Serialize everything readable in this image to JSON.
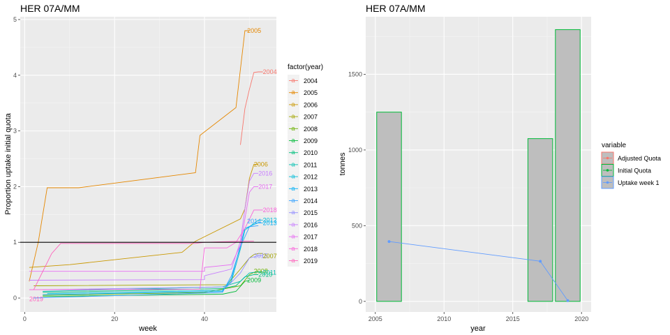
{
  "chart_data": [
    {
      "type": "line",
      "title": "HER 07A/MM",
      "xlabel": "week",
      "ylabel": "Proportion uptake initial quota",
      "xlim": [
        -1,
        56
      ],
      "ylim": [
        -0.25,
        5.05
      ],
      "xticks": [
        0,
        20,
        40
      ],
      "yticks": [
        0,
        1,
        2,
        3,
        4,
        5
      ],
      "hline": 1,
      "grid": true,
      "legend": {
        "title": "factor(year)",
        "position": "right"
      },
      "series": [
        {
          "name": "2004",
          "color": "#F8766D",
          "label": "2004",
          "points": [
            [
              48,
              2.75
            ],
            [
              49,
              3.4
            ],
            [
              50,
              3.75
            ],
            [
              51,
              4.05
            ],
            [
              52,
              4.06
            ],
            [
              53,
              4.06
            ]
          ]
        },
        {
          "name": "2005",
          "color": "#E58700",
          "label": "2005",
          "points": [
            [
              1,
              0.3
            ],
            [
              3,
              1.0
            ],
            [
              5,
              1.98
            ],
            [
              12,
              1.98
            ],
            [
              38,
              2.25
            ],
            [
              39,
              2.92
            ],
            [
              47,
              3.42
            ],
            [
              49,
              4.8
            ],
            [
              50,
              4.8
            ]
          ]
        },
        {
          "name": "2006",
          "color": "#C99800",
          "label": "2006",
          "points": [
            [
              1,
              0.55
            ],
            [
              10,
              0.6
            ],
            [
              35,
              0.82
            ],
            [
              38,
              1.02
            ],
            [
              48,
              1.42
            ],
            [
              49,
              1.6
            ],
            [
              50,
              2.15
            ],
            [
              51,
              2.4
            ],
            [
              52,
              2.4
            ]
          ]
        },
        {
          "name": "2007",
          "color": "#A3A500",
          "label": "2007",
          "points": [
            [
              2,
              0.22
            ],
            [
              45,
              0.24
            ],
            [
              48,
              0.52
            ],
            [
              50,
              0.72
            ],
            [
              51,
              0.78
            ],
            [
              52,
              0.8
            ],
            [
              53,
              0.8
            ]
          ]
        },
        {
          "name": "2008",
          "color": "#6BB100",
          "label": "2008",
          "points": [
            [
              4,
              0.05
            ],
            [
              40,
              0.1
            ],
            [
              48,
              0.22
            ],
            [
              50,
              0.42
            ],
            [
              51,
              0.46
            ],
            [
              52,
              0.48
            ]
          ]
        },
        {
          "name": "2009",
          "color": "#00BA38",
          "label": "2009",
          "points": [
            [
              4,
              0.03
            ],
            [
              44,
              0.07
            ],
            [
              47,
              0.12
            ],
            [
              49,
              0.3
            ],
            [
              50,
              0.32
            ]
          ]
        },
        {
          "name": "2010",
          "color": "#00BF7D",
          "label": "2010",
          "points": [
            [
              4,
              0.1
            ],
            [
              44,
              0.17
            ],
            [
              47,
              0.22
            ],
            [
              49,
              0.38
            ],
            [
              51,
              0.42
            ],
            [
              52,
              0.42
            ]
          ]
        },
        {
          "name": "2011",
          "color": "#00C0AF",
          "label": "2011",
          "points": [
            [
              4,
              0.12
            ],
            [
              44,
              0.2
            ],
            [
              48,
              0.3
            ],
            [
              50,
              0.45
            ],
            [
              52,
              0.47
            ],
            [
              53,
              0.47
            ]
          ]
        },
        {
          "name": "2012",
          "color": "#00BCD8",
          "label": "2012",
          "points": [
            [
              5,
              0.08
            ],
            [
              44,
              0.14
            ],
            [
              46,
              0.3
            ],
            [
              48,
              0.88
            ],
            [
              49,
              1.22
            ],
            [
              51,
              1.34
            ],
            [
              52,
              1.4
            ],
            [
              53,
              1.4
            ]
          ]
        },
        {
          "name": "2013",
          "color": "#00B0F6",
          "label": "2013",
          "points": [
            [
              4,
              0.06
            ],
            [
              44,
              0.12
            ],
            [
              46,
              0.35
            ],
            [
              48,
              0.95
            ],
            [
              49,
              1.25
            ],
            [
              51,
              1.32
            ],
            [
              52,
              1.35
            ],
            [
              53,
              1.35
            ]
          ]
        },
        {
          "name": "2014",
          "color": "#35A2FF",
          "label": "2014",
          "points": [
            [
              2,
              0.0
            ],
            [
              44,
              0.1
            ],
            [
              46,
              0.4
            ],
            [
              48,
              0.92
            ],
            [
              50,
              1.28
            ],
            [
              52,
              1.3
            ]
          ]
        },
        {
          "name": "2015",
          "color": "#9590FF",
          "label": "2015",
          "points": [
            [
              4,
              0.15
            ],
            [
              45,
              0.2
            ],
            [
              48,
              0.45
            ],
            [
              50,
              0.72
            ],
            [
              52,
              0.76
            ],
            [
              53,
              0.76
            ]
          ]
        },
        {
          "name": "2016",
          "color": "#C77CFF",
          "label": "2016",
          "points": [
            [
              1,
              0.32
            ],
            [
              40,
              0.33
            ],
            [
              40,
              0.4
            ],
            [
              46,
              0.52
            ],
            [
              48,
              1.02
            ],
            [
              49,
              1.6
            ],
            [
              50,
              2.1
            ],
            [
              51,
              2.24
            ],
            [
              52,
              2.24
            ]
          ]
        },
        {
          "name": "2017",
          "color": "#E76BF3",
          "label": "2017",
          "points": [
            [
              1,
              0.48
            ],
            [
              40,
              0.48
            ],
            [
              40,
              0.55
            ],
            [
              46,
              0.6
            ],
            [
              48,
              0.95
            ],
            [
              50,
              1.9
            ],
            [
              51,
              2.0
            ],
            [
              52,
              2.0
            ]
          ]
        },
        {
          "name": "2018",
          "color": "#FA62DB",
          "label": "2018",
          "points": [
            [
              1,
              0.15
            ],
            [
              39,
              0.16
            ],
            [
              40,
              0.9
            ],
            [
              45,
              0.9
            ],
            [
              47,
              1.0
            ],
            [
              49,
              1.25
            ],
            [
              51,
              1.58
            ],
            [
              53,
              1.58
            ]
          ]
        },
        {
          "name": "2019",
          "color": "#FF62BC",
          "label": "2019",
          "points": [
            [
              2,
              0.15
            ],
            [
              6,
              0.8
            ],
            [
              8,
              0.98
            ],
            [
              38,
              0.98
            ],
            [
              40,
              1.0
            ],
            [
              48,
              1.02
            ],
            [
              51,
              1.02
            ]
          ]
        }
      ],
      "end_labels": [
        {
          "text": "2005",
          "x": 49.5,
          "y": 4.8,
          "color": "#E58700"
        },
        {
          "text": "2004",
          "x": 53,
          "y": 4.06,
          "color": "#F8766D"
        },
        {
          "text": "2006",
          "x": 51,
          "y": 2.4,
          "color": "#C99800"
        },
        {
          "text": "2016",
          "x": 52,
          "y": 2.24,
          "color": "#C77CFF"
        },
        {
          "text": "2017",
          "x": 52,
          "y": 2.0,
          "color": "#E76BF3"
        },
        {
          "text": "2018",
          "x": 53,
          "y": 1.58,
          "color": "#FA62DB"
        },
        {
          "text": "2012",
          "x": 53,
          "y": 1.4,
          "color": "#00BCD8"
        },
        {
          "text": "2013",
          "x": 53,
          "y": 1.35,
          "color": "#00B0F6"
        },
        {
          "text": "2014",
          "x": 49.5,
          "y": 1.38,
          "color": "#35A2FF"
        },
        {
          "text": "2015",
          "x": 51,
          "y": 0.76,
          "color": "#9590FF"
        },
        {
          "text": "2007",
          "x": 53,
          "y": 0.75,
          "color": "#A3A500"
        },
        {
          "text": "2008",
          "x": 51,
          "y": 0.48,
          "color": "#6BB100"
        },
        {
          "text": "2011",
          "x": 53,
          "y": 0.46,
          "color": "#00C0AF"
        },
        {
          "text": "2010",
          "x": 52,
          "y": 0.42,
          "color": "#00BF7D"
        },
        {
          "text": "2009",
          "x": 49.5,
          "y": 0.32,
          "color": "#00BA38"
        },
        {
          "text": "2019",
          "x": 1,
          "y": -0.02,
          "color": "#FF62BC"
        }
      ]
    },
    {
      "type": "bar",
      "title": "HER 07A/MM",
      "xlabel": "year",
      "ylabel": "tonnes",
      "xlim": [
        2004.3,
        2020.7
      ],
      "ylim": [
        -70,
        1880
      ],
      "xticks": [
        2005,
        2010,
        2015,
        2020
      ],
      "yticks": [
        0,
        500,
        1000,
        1500
      ],
      "grid": true,
      "legend": {
        "title": "variable",
        "position": "right",
        "entries": [
          {
            "name": "Adjusted Quota",
            "color": "#F8766D"
          },
          {
            "name": "Initial Quota",
            "color": "#00BA38"
          },
          {
            "name": "Uptake week 1",
            "color": "#619CFF"
          }
        ]
      },
      "bars": [
        {
          "series": "Initial Quota",
          "year": 2006,
          "value": 1250
        },
        {
          "series": "Initial Quota",
          "year": 2017,
          "value": 1075
        },
        {
          "series": "Initial Quota",
          "year": 2019,
          "value": 1795
        }
      ],
      "bar_width": 1.8,
      "bar_fill": "#bebebe",
      "line_series": {
        "name": "Uptake week 1",
        "color": "#619CFF",
        "points": [
          [
            2006,
            395
          ],
          [
            2017,
            265
          ],
          [
            2019,
            5
          ]
        ]
      }
    }
  ]
}
